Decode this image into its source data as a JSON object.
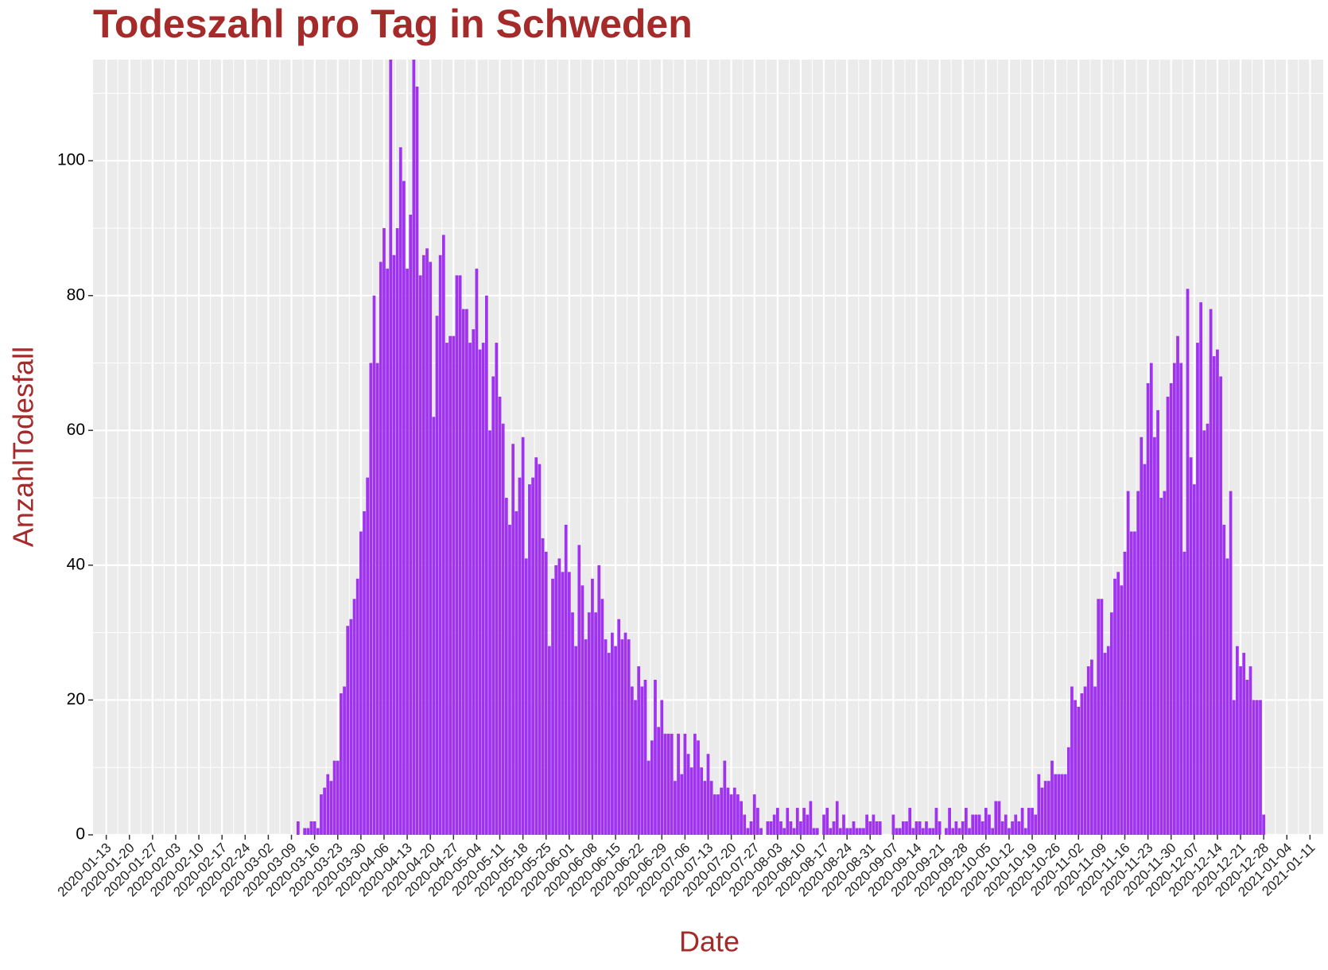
{
  "chart_data": {
    "type": "bar",
    "title": "Todeszahl pro Tag in Schweden",
    "x_label": "Date",
    "y_label": "AnzahlTodesfall",
    "color": "#a033f0",
    "grid": true,
    "xlim": [
      "2020-01-09",
      "2021-01-15"
    ],
    "ylim": [
      0,
      115
    ],
    "yticks": [
      0,
      20,
      40,
      60,
      80,
      100
    ],
    "xticks": [
      "2020-01-13",
      "2020-01-20",
      "2020-01-27",
      "2020-02-03",
      "2020-02-10",
      "2020-02-17",
      "2020-02-24",
      "2020-03-02",
      "2020-03-09",
      "2020-03-16",
      "2020-03-23",
      "2020-03-30",
      "2020-04-06",
      "2020-04-13",
      "2020-04-20",
      "2020-04-27",
      "2020-05-04",
      "2020-05-11",
      "2020-05-18",
      "2020-05-25",
      "2020-06-01",
      "2020-06-08",
      "2020-06-15",
      "2020-06-22",
      "2020-06-29",
      "2020-07-06",
      "2020-07-13",
      "2020-07-20",
      "2020-07-27",
      "2020-08-03",
      "2020-08-10",
      "2020-08-17",
      "2020-08-24",
      "2020-08-31",
      "2020-09-07",
      "2020-09-14",
      "2020-09-21",
      "2020-09-28",
      "2020-10-05",
      "2020-10-12",
      "2020-10-19",
      "2020-10-26",
      "2020-11-02",
      "2020-11-09",
      "2020-11-16",
      "2020-11-23",
      "2020-11-30",
      "2020-12-07",
      "2020-12-14",
      "2020-12-21",
      "2020-12-28",
      "2021-01-04",
      "2021-01-11"
    ],
    "x": [
      "2020-03-11",
      "2020-03-12",
      "2020-03-13",
      "2020-03-14",
      "2020-03-15",
      "2020-03-16",
      "2020-03-17",
      "2020-03-18",
      "2020-03-19",
      "2020-03-20",
      "2020-03-21",
      "2020-03-22",
      "2020-03-23",
      "2020-03-24",
      "2020-03-25",
      "2020-03-26",
      "2020-03-27",
      "2020-03-28",
      "2020-03-29",
      "2020-03-30",
      "2020-03-31",
      "2020-04-01",
      "2020-04-02",
      "2020-04-03",
      "2020-04-04",
      "2020-04-05",
      "2020-04-06",
      "2020-04-07",
      "2020-04-08",
      "2020-04-09",
      "2020-04-10",
      "2020-04-11",
      "2020-04-12",
      "2020-04-13",
      "2020-04-14",
      "2020-04-15",
      "2020-04-16",
      "2020-04-17",
      "2020-04-18",
      "2020-04-19",
      "2020-04-20",
      "2020-04-21",
      "2020-04-22",
      "2020-04-23",
      "2020-04-24",
      "2020-04-25",
      "2020-04-26",
      "2020-04-27",
      "2020-04-28",
      "2020-04-29",
      "2020-04-30",
      "2020-05-01",
      "2020-05-02",
      "2020-05-03",
      "2020-05-04",
      "2020-05-05",
      "2020-05-06",
      "2020-05-07",
      "2020-05-08",
      "2020-05-09",
      "2020-05-10",
      "2020-05-11",
      "2020-05-12",
      "2020-05-13",
      "2020-05-14",
      "2020-05-15",
      "2020-05-16",
      "2020-05-17",
      "2020-05-18",
      "2020-05-19",
      "2020-05-20",
      "2020-05-21",
      "2020-05-22",
      "2020-05-23",
      "2020-05-24",
      "2020-05-25",
      "2020-05-26",
      "2020-05-27",
      "2020-05-28",
      "2020-05-29",
      "2020-05-30",
      "2020-05-31",
      "2020-06-01",
      "2020-06-02",
      "2020-06-03",
      "2020-06-04",
      "2020-06-05",
      "2020-06-06",
      "2020-06-07",
      "2020-06-08",
      "2020-06-09",
      "2020-06-10",
      "2020-06-11",
      "2020-06-12",
      "2020-06-13",
      "2020-06-14",
      "2020-06-15",
      "2020-06-16",
      "2020-06-17",
      "2020-06-18",
      "2020-06-19",
      "2020-06-20",
      "2020-06-21",
      "2020-06-22",
      "2020-06-23",
      "2020-06-24",
      "2020-06-25",
      "2020-06-26",
      "2020-06-27",
      "2020-06-28",
      "2020-06-29",
      "2020-06-30",
      "2020-07-01",
      "2020-07-02",
      "2020-07-03",
      "2020-07-04",
      "2020-07-05",
      "2020-07-06",
      "2020-07-07",
      "2020-07-08",
      "2020-07-09",
      "2020-07-10",
      "2020-07-11",
      "2020-07-12",
      "2020-07-13",
      "2020-07-14",
      "2020-07-15",
      "2020-07-16",
      "2020-07-17",
      "2020-07-18",
      "2020-07-19",
      "2020-07-20",
      "2020-07-21",
      "2020-07-22",
      "2020-07-23",
      "2020-07-24",
      "2020-07-25",
      "2020-07-26",
      "2020-07-27",
      "2020-07-28",
      "2020-07-29",
      "2020-07-30",
      "2020-07-31",
      "2020-08-01",
      "2020-08-02",
      "2020-08-03",
      "2020-08-04",
      "2020-08-05",
      "2020-08-06",
      "2020-08-07",
      "2020-08-08",
      "2020-08-09",
      "2020-08-10",
      "2020-08-11",
      "2020-08-12",
      "2020-08-13",
      "2020-08-14",
      "2020-08-15",
      "2020-08-16",
      "2020-08-17",
      "2020-08-18",
      "2020-08-19",
      "2020-08-20",
      "2020-08-21",
      "2020-08-22",
      "2020-08-23",
      "2020-08-24",
      "2020-08-25",
      "2020-08-26",
      "2020-08-27",
      "2020-08-28",
      "2020-08-29",
      "2020-08-30",
      "2020-08-31",
      "2020-09-01",
      "2020-09-02",
      "2020-09-03",
      "2020-09-04",
      "2020-09-05",
      "2020-09-06",
      "2020-09-07",
      "2020-09-08",
      "2020-09-09",
      "2020-09-10",
      "2020-09-11",
      "2020-09-12",
      "2020-09-13",
      "2020-09-14",
      "2020-09-15",
      "2020-09-16",
      "2020-09-17",
      "2020-09-18",
      "2020-09-19",
      "2020-09-20",
      "2020-09-21",
      "2020-09-22",
      "2020-09-23",
      "2020-09-24",
      "2020-09-25",
      "2020-09-26",
      "2020-09-27",
      "2020-09-28",
      "2020-09-29",
      "2020-09-30",
      "2020-10-01",
      "2020-10-02",
      "2020-10-03",
      "2020-10-04",
      "2020-10-05",
      "2020-10-06",
      "2020-10-07",
      "2020-10-08",
      "2020-10-09",
      "2020-10-10",
      "2020-10-11",
      "2020-10-12",
      "2020-10-13",
      "2020-10-14",
      "2020-10-15",
      "2020-10-16",
      "2020-10-17",
      "2020-10-18",
      "2020-10-19",
      "2020-10-20",
      "2020-10-21",
      "2020-10-22",
      "2020-10-23",
      "2020-10-24",
      "2020-10-25",
      "2020-10-26",
      "2020-10-27",
      "2020-10-28",
      "2020-10-29",
      "2020-10-30",
      "2020-10-31",
      "2020-11-01",
      "2020-11-02",
      "2020-11-03",
      "2020-11-04",
      "2020-11-05",
      "2020-11-06",
      "2020-11-07",
      "2020-11-08",
      "2020-11-09",
      "2020-11-10",
      "2020-11-11",
      "2020-11-12",
      "2020-11-13",
      "2020-11-14",
      "2020-11-15",
      "2020-11-16",
      "2020-11-17",
      "2020-11-18",
      "2020-11-19",
      "2020-11-20",
      "2020-11-21",
      "2020-11-22",
      "2020-11-23",
      "2020-11-24",
      "2020-11-25",
      "2020-11-26",
      "2020-11-27",
      "2020-11-28",
      "2020-11-29",
      "2020-11-30",
      "2020-12-01",
      "2020-12-02",
      "2020-12-03",
      "2020-12-04",
      "2020-12-05",
      "2020-12-06",
      "2020-12-07",
      "2020-12-08",
      "2020-12-09",
      "2020-12-10",
      "2020-12-11",
      "2020-12-12",
      "2020-12-13",
      "2020-12-14",
      "2020-12-15",
      "2020-12-16",
      "2020-12-17",
      "2020-12-18",
      "2020-12-19",
      "2020-12-20",
      "2020-12-21",
      "2020-12-22",
      "2020-12-23",
      "2020-12-24",
      "2020-12-25",
      "2020-12-26",
      "2020-12-27",
      "2020-12-28"
    ],
    "values": [
      2,
      0,
      1,
      1,
      2,
      2,
      1,
      6,
      7,
      9,
      8,
      11,
      11,
      21,
      22,
      31,
      32,
      35,
      38,
      45,
      48,
      53,
      70,
      80,
      70,
      85,
      90,
      84,
      116,
      86,
      90,
      102,
      97,
      84,
      92,
      116,
      111,
      83,
      86,
      87,
      85,
      62,
      77,
      86,
      89,
      73,
      74,
      74,
      83,
      83,
      78,
      78,
      73,
      75,
      84,
      72,
      73,
      80,
      60,
      68,
      73,
      65,
      61,
      50,
      46,
      58,
      48,
      53,
      59,
      41,
      52,
      53,
      56,
      55,
      44,
      42,
      28,
      38,
      40,
      41,
      39,
      46,
      39,
      33,
      28,
      43,
      37,
      29,
      33,
      38,
      33,
      40,
      35,
      29,
      27,
      30,
      28,
      32,
      29,
      30,
      29,
      22,
      20,
      25,
      22,
      23,
      11,
      14,
      23,
      16,
      20,
      15,
      15,
      15,
      8,
      15,
      9,
      15,
      12,
      10,
      15,
      14,
      10,
      8,
      12,
      8,
      6,
      6,
      7,
      11,
      7,
      6,
      7,
      6,
      5,
      3,
      1,
      2,
      6,
      4,
      1,
      0,
      2,
      2,
      3,
      4,
      2,
      1,
      4,
      2,
      1,
      4,
      2,
      4,
      3,
      5,
      1,
      1,
      0,
      3,
      4,
      1,
      2,
      5,
      1,
      3,
      1,
      1,
      2,
      1,
      1,
      1,
      3,
      2,
      3,
      2,
      2,
      0,
      0,
      0,
      3,
      1,
      1,
      2,
      2,
      4,
      1,
      2,
      2,
      1,
      2,
      1,
      1,
      4,
      2,
      0,
      1,
      4,
      1,
      2,
      1,
      2,
      4,
      1,
      3,
      3,
      3,
      2,
      4,
      3,
      1,
      5,
      5,
      2,
      3,
      1,
      2,
      3,
      2,
      4,
      1,
      4,
      4,
      3,
      9,
      7,
      8,
      8,
      11,
      9,
      9,
      9,
      9,
      13,
      22,
      20,
      19,
      21,
      22,
      25,
      26,
      22,
      35,
      35,
      27,
      28,
      33,
      38,
      39,
      37,
      42,
      51,
      45,
      45,
      51,
      59,
      55,
      67,
      70,
      59,
      63,
      50,
      51,
      65,
      67,
      70,
      74,
      70,
      42,
      81,
      56,
      52,
      73,
      79,
      60,
      61,
      78,
      71,
      72,
      68,
      46,
      41,
      51,
      20,
      28,
      25,
      27,
      23,
      25,
      20,
      20,
      20,
      3
    ]
  }
}
